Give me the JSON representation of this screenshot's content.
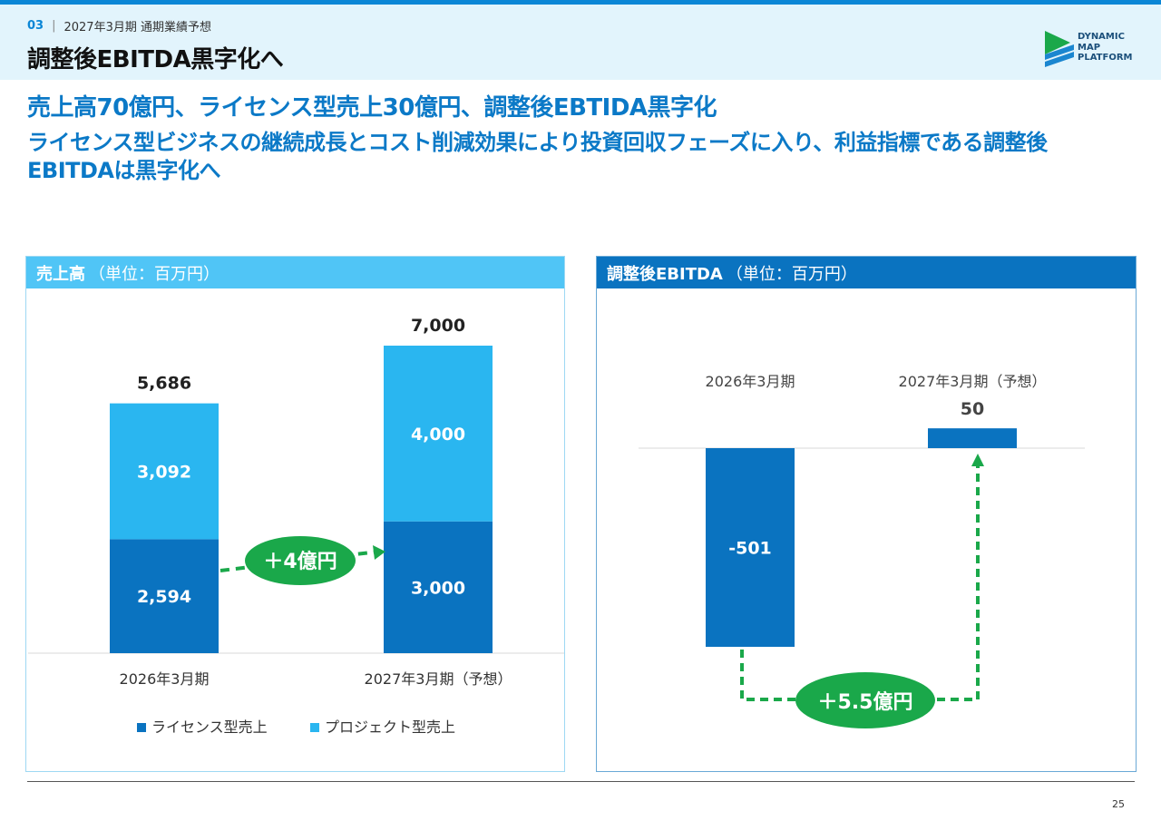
{
  "header": {
    "section_no": "03",
    "separator": "|",
    "section_label": "2027年3月期 通期業績予想",
    "title": "調整後EBITDA黒字化へ"
  },
  "logo": {
    "line1": "DYNAMIC",
    "line2": "MAP",
    "line3": "PLATFORM",
    "colors": {
      "green": "#1aa84a",
      "blue": "#1a86d0",
      "navy": "#1b4f7a"
    }
  },
  "headline1": "売上高70億円、ライセンス型売上30億円、調整後EBTIDA黒字化",
  "headline2": "ライセンス型ビジネスの継続成長とコスト削減効果により投資回収フェーズに入り、利益指標である調整後EBITDAは黒字化へ",
  "revenue_panel": {
    "title": "売上高",
    "unit": "（単位：百万円）",
    "delta_label": "＋4億円"
  },
  "ebitda_panel": {
    "title": "調整後EBITDA",
    "unit": "（単位：百万円）",
    "delta_label": "＋5.5億円"
  },
  "chart_data": [
    {
      "type": "bar",
      "stacked": true,
      "categories": [
        "2026年3月期",
        "2027年3月期（予想）"
      ],
      "series": [
        {
          "name": "ライセンス型売上",
          "values": [
            2594,
            3000
          ],
          "color": "#0a73c0",
          "labels": [
            "2,594",
            "3,000"
          ]
        },
        {
          "name": "プロジェクト型売上",
          "values": [
            3092,
            4000
          ],
          "color": "#2ab6f0",
          "labels": [
            "3,092",
            "4,000"
          ]
        }
      ],
      "totals": [
        5686,
        7000
      ],
      "total_labels": [
        "5,686",
        "7,000"
      ],
      "ylim": [
        0,
        7000
      ],
      "legend": "bottom"
    },
    {
      "type": "bar",
      "categories": [
        "2026年3月期",
        "2027年3月期（予想）"
      ],
      "series": [
        {
          "values": [
            -501,
            50
          ],
          "color": "#0a73c0",
          "labels": [
            "-501",
            "50"
          ]
        }
      ],
      "ylim": [
        -501,
        50
      ]
    }
  ],
  "colors": {
    "accent": "#0a86d6",
    "headline": "#0b79c7",
    "dark_bar": "#0a73c0",
    "light_bar": "#2ab6f0",
    "green": "#1aa84a",
    "header_bg": "#e2f4fc"
  },
  "page_number": "25"
}
